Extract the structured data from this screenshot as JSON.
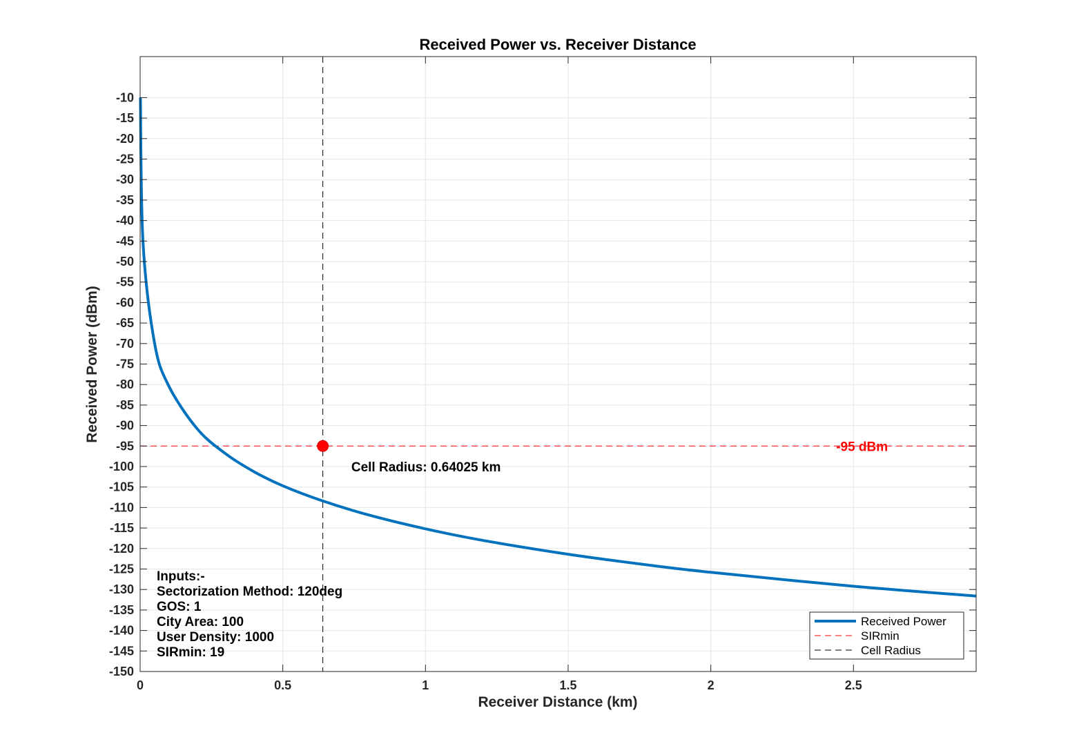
{
  "chart_data": {
    "type": "line",
    "title": "Received Power vs. Receiver Distance",
    "xlabel": "Receiver Distance (km)",
    "ylabel": "Received Power (dBm)",
    "xlim": [
      0,
      2.93
    ],
    "ylim": [
      -150,
      0
    ],
    "x_ticks": [
      0,
      0.5,
      1,
      1.5,
      2,
      2.5
    ],
    "x_tick_labels": [
      "0",
      "0.5",
      "1",
      "1.5",
      "2",
      "2.5"
    ],
    "y_ticks": [
      -150,
      -145,
      -140,
      -135,
      -130,
      -125,
      -120,
      -115,
      -110,
      -105,
      -100,
      -95,
      -90,
      -85,
      -80,
      -75,
      -70,
      -65,
      -60,
      -55,
      -50,
      -45,
      -40,
      -35,
      -30,
      -25,
      -20,
      -15,
      -10
    ],
    "y_tick_labels": [
      "-150",
      "-145",
      "-140",
      "-135",
      "-130",
      "-125",
      "-120",
      "-115",
      "-110",
      "-105",
      "-100",
      "-95",
      "-90",
      "-85",
      "-80",
      "-75",
      "-70",
      "-65",
      "-60",
      "-55",
      "-50",
      "-45",
      "-40",
      "-35",
      "-30",
      "-25",
      "-20",
      "-15",
      "-10"
    ],
    "grid": true,
    "legend_position": "bottom-right",
    "series": [
      {
        "name": "Received Power",
        "color": "#0072bd",
        "style": "solid",
        "x": [
          0.001,
          0.01,
          0.05,
          0.1,
          0.2,
          0.3,
          0.4,
          0.5,
          0.64025,
          0.8,
          1.0,
          1.2,
          1.5,
          1.8,
          2.0,
          2.5,
          2.93
        ],
        "y": [
          -10.0,
          -45.2,
          -69.7,
          -80.3,
          -90.8,
          -96.9,
          -101.3,
          -104.7,
          -108.4,
          -111.8,
          -115.2,
          -118.0,
          -121.4,
          -124.2,
          -125.8,
          -129.2,
          -131.6
        ]
      },
      {
        "name": "SIRmin",
        "color": "#ff0000",
        "style": "dashed",
        "y_constant": -95
      },
      {
        "name": "Cell Radius",
        "color": "#000000",
        "style": "dashed",
        "x_constant": 0.64025
      }
    ],
    "point": {
      "x": 0.64025,
      "y": -95,
      "color": "#ff0000"
    },
    "annotations": {
      "threshold_label": "-95 dBm",
      "threshold_label_x": 2.53,
      "cell_radius_label": "Cell Radius: 0.64025 km",
      "cell_radius_label_x": 0.74,
      "cell_radius_label_y": -100
    },
    "inputs": [
      "Inputs:-",
      "Sectorization Method: 120deg",
      "GOS: 1",
      "City Area: 100",
      "User Density: 1000",
      "SIRmin: 19"
    ]
  }
}
